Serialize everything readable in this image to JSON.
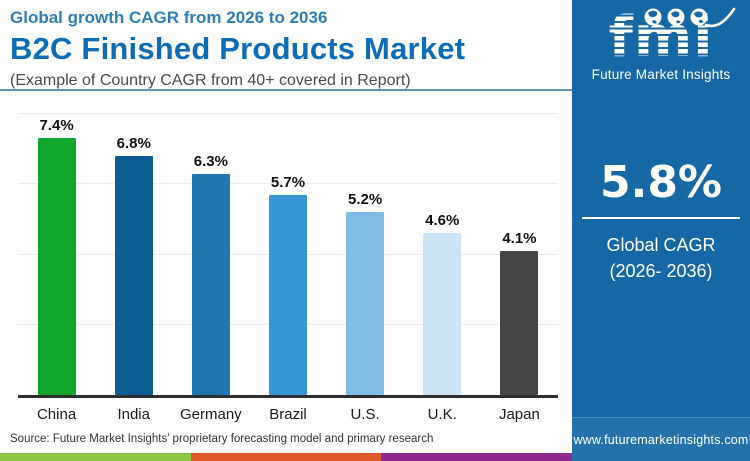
{
  "header": {
    "kicker": "Global growth CAGR from 2026 to 2036",
    "title": "B2C Finished Products Market",
    "subtitle": "(Example of Country CAGR from 40+ covered in Report)"
  },
  "chart_data": {
    "type": "bar",
    "title": "B2C Finished Products Market — Country CAGR 2026 to 2036",
    "categories": [
      "China",
      "India",
      "Germany",
      "Brazil",
      "U.S.",
      "U.K.",
      "Japan"
    ],
    "values": [
      7.4,
      6.8,
      6.3,
      5.7,
      5.2,
      4.6,
      4.1
    ],
    "labels": [
      "7.4%",
      "6.8%",
      "6.3%",
      "5.7%",
      "5.2%",
      "4.6%",
      "4.1%"
    ],
    "bar_colors": [
      "#12a62f",
      "#0d5c92",
      "#2075ac",
      "#3697d6",
      "#80bbe2",
      "#cbe3f3",
      "#454545"
    ],
    "xlabel": "",
    "ylabel": "",
    "ylim": [
      0,
      8
    ],
    "gridline_values": [
      2,
      4,
      6,
      8
    ],
    "grid": true,
    "legend": false,
    "value_suffix": "%"
  },
  "sidebar": {
    "logo_text": "fmi",
    "logo_tagline": "Future Market Insights",
    "globe_icons": [
      "globe-americas-icon",
      "globe-europe-icon",
      "globe-asia-icon"
    ],
    "stat_value": "5.8%",
    "stat_label_line1": "Global CAGR",
    "stat_label_line2": "(2026- 2036)",
    "website": "www.futuremarketinsights.com",
    "background": "#1568a4"
  },
  "footer": {
    "source": "Source: Future Market Insights’ proprietary forecasting model and primary research",
    "strip_colors": [
      "#8dc63f",
      "#e0592a",
      "#8f2b8f"
    ]
  },
  "colors": {
    "kicker_blue": "#2e7eba",
    "title_blue": "#0c6db6",
    "divider_blue": "#6090ba",
    "axis": "#2e2e2e",
    "gridline": "#ebedf2",
    "sidebar_blue": "#1568a4"
  }
}
